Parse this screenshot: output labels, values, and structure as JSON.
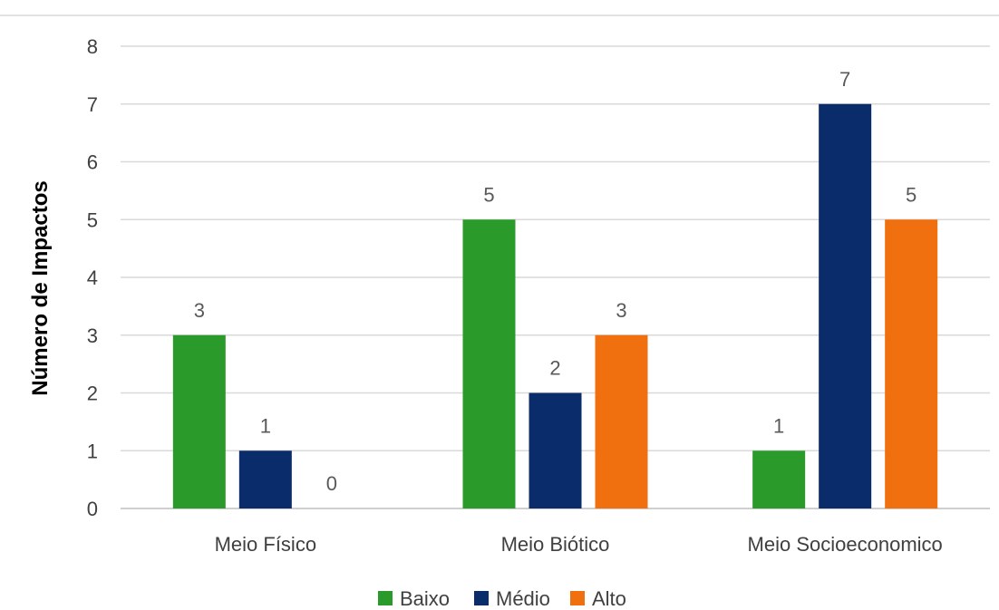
{
  "chart_data": {
    "type": "bar",
    "title": "",
    "xlabel": "",
    "ylabel": "Número de Impactos",
    "ylim": [
      0,
      8
    ],
    "yticks": [
      0,
      1,
      2,
      3,
      4,
      5,
      6,
      7,
      8
    ],
    "categories": [
      "Meio Físico",
      "Meio Biótico",
      "Meio Socioeconomico"
    ],
    "series": [
      {
        "name": "Baixo",
        "color": "#2a9b2a",
        "values": [
          3,
          5,
          1
        ]
      },
      {
        "name": "Médio",
        "color": "#0b2c6b",
        "values": [
          1,
          2,
          7
        ]
      },
      {
        "name": "Alto",
        "color": "#f07010",
        "values": [
          0,
          3,
          5
        ]
      }
    ],
    "grid": true,
    "legend": "bottom"
  }
}
